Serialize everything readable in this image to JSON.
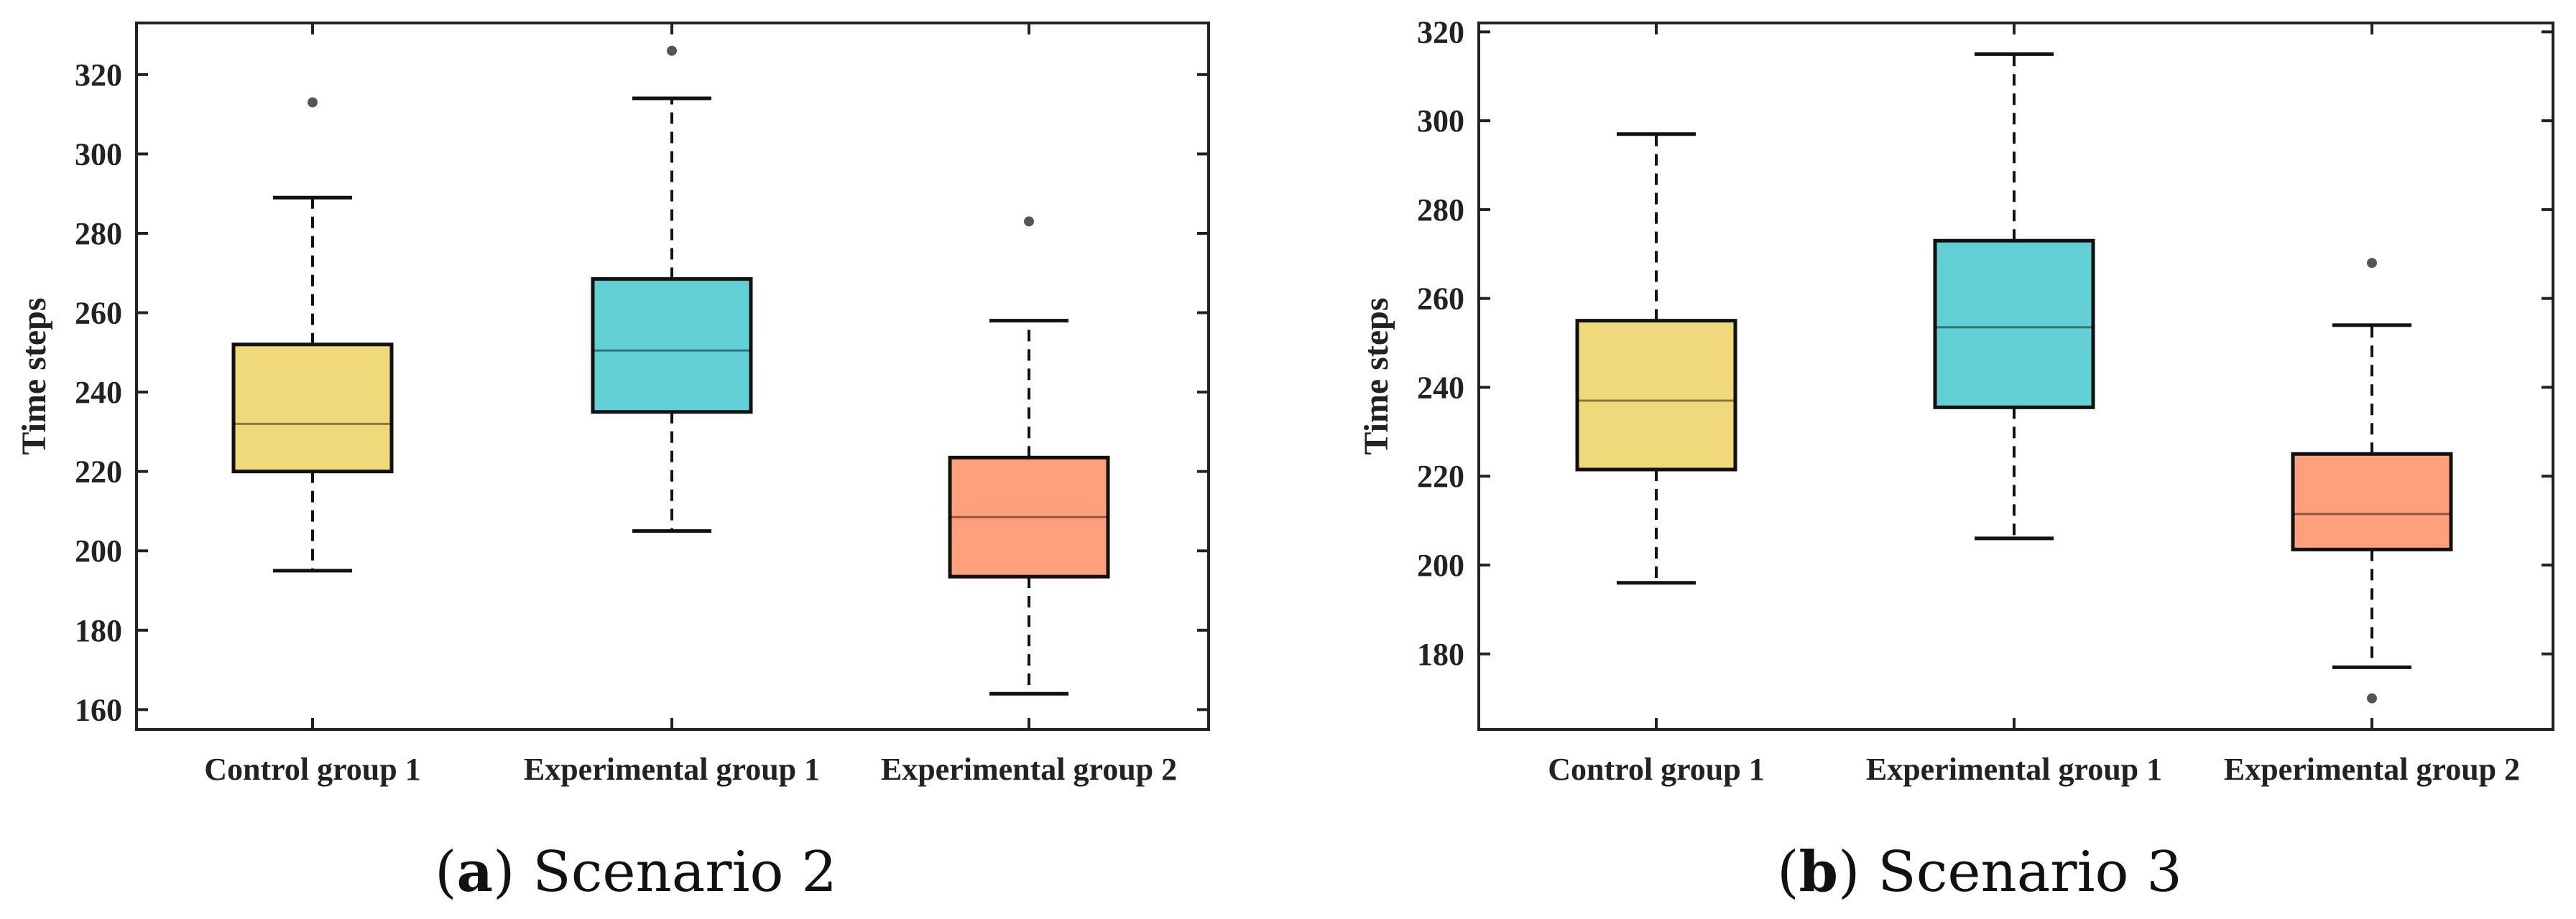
{
  "chart_data": [
    {
      "type": "box",
      "title": "Scenario 2",
      "caption_label": "a",
      "ylabel": "Time steps",
      "xlabel": "",
      "ylim": [
        155,
        333
      ],
      "yticks": [
        160,
        180,
        200,
        220,
        240,
        260,
        280,
        300,
        320
      ],
      "categories": [
        "Control group 1",
        "Experimental group 1",
        "Experimental group 2"
      ],
      "boxes": [
        {
          "name": "Control group 1",
          "min": 195,
          "q1": 220,
          "median": 232,
          "q3": 252,
          "max": 289,
          "outliers": [
            313
          ],
          "color": "#f0d97a"
        },
        {
          "name": "Experimental group 1",
          "min": 205,
          "q1": 235,
          "median": 250.5,
          "q3": 268.5,
          "max": 314,
          "outliers": [
            326
          ],
          "color": "#62cfd4"
        },
        {
          "name": "Experimental group 2",
          "min": 164,
          "q1": 193.5,
          "median": 208.5,
          "q3": 223.5,
          "max": 258,
          "outliers": [
            283
          ],
          "color": "#ffa07a"
        }
      ]
    },
    {
      "type": "box",
      "title": "Scenario 3",
      "caption_label": "b",
      "ylabel": "Time steps",
      "xlabel": "",
      "ylim": [
        163,
        322
      ],
      "yticks": [
        180,
        200,
        220,
        240,
        260,
        280,
        300,
        320
      ],
      "categories": [
        "Control group 1",
        "Experimental group 1",
        "Experimental group 2"
      ],
      "boxes": [
        {
          "name": "Control group 1",
          "min": 196,
          "q1": 221.5,
          "median": 237,
          "q3": 255,
          "max": 297,
          "outliers": [],
          "color": "#f0d97a"
        },
        {
          "name": "Experimental group 1",
          "min": 206,
          "q1": 235.5,
          "median": 253.5,
          "q3": 273,
          "max": 315,
          "outliers": [],
          "color": "#62cfd4"
        },
        {
          "name": "Experimental group 2",
          "min": 177,
          "q1": 203.5,
          "median": 211.5,
          "q3": 225,
          "max": 254,
          "outliers": [
            268,
            170
          ],
          "color": "#ffa07a"
        }
      ]
    }
  ],
  "captions": [
    {
      "label": "a",
      "text": "Scenario 2"
    },
    {
      "label": "b",
      "text": "Scenario 3"
    }
  ]
}
